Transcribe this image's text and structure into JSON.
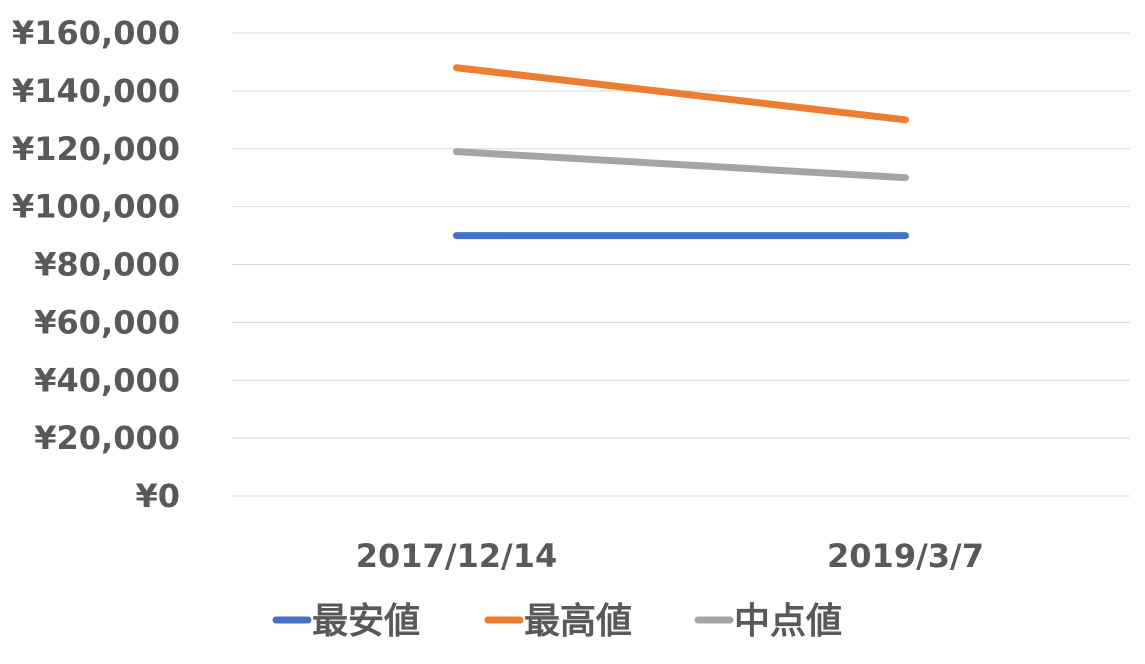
{
  "chart_data": {
    "type": "line",
    "x": [
      "2017/12/14",
      "2019/3/7"
    ],
    "series": [
      {
        "name": "最安値",
        "values": [
          90000,
          90000
        ],
        "color": "#4472c4"
      },
      {
        "name": "最高値",
        "values": [
          148000,
          130000
        ],
        "color": "#ed7d31"
      },
      {
        "name": "中点値",
        "values": [
          119000,
          110000
        ],
        "color": "#a5a5a5"
      }
    ],
    "yticks": [
      "¥0",
      "¥20,000",
      "¥40,000",
      "¥60,000",
      "¥80,000",
      "¥100,000",
      "¥120,000",
      "¥140,000",
      "¥160,000"
    ],
    "ylim": [
      0,
      160000
    ],
    "grid": true,
    "legend": "bottom",
    "title": "",
    "xlabel": "",
    "ylabel": ""
  }
}
